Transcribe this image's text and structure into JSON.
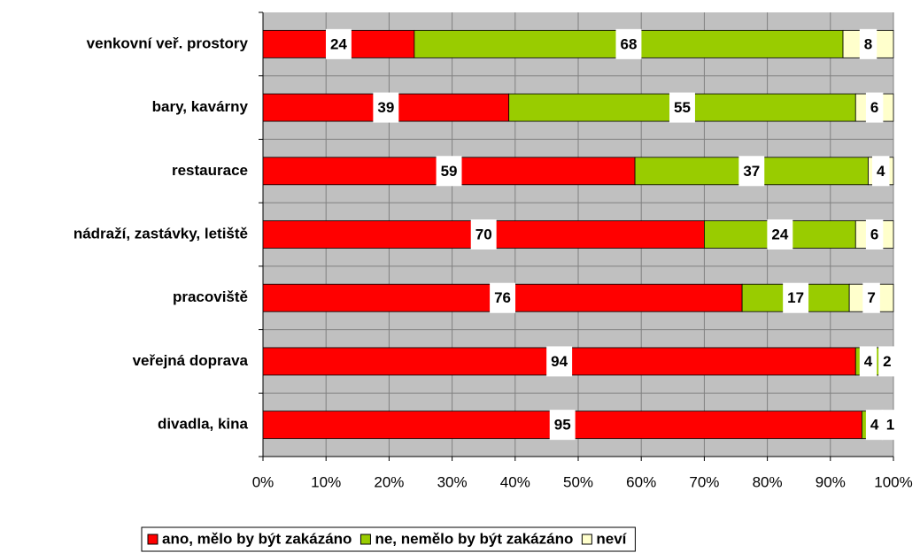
{
  "chart_data": {
    "type": "stacked-barh",
    "categories": [
      "venkovní veř. prostory",
      "bary, kavárny",
      "restaurace",
      "nádraží, zastávky, letiště",
      "pracoviště",
      "veřejná doprava",
      "divadla, kina"
    ],
    "series": [
      {
        "name": "ano, mělo by být zakázáno",
        "color": "#ff0000",
        "values": [
          24,
          39,
          59,
          70,
          76,
          94,
          95
        ]
      },
      {
        "name": "ne, nemělo by být zakázáno",
        "color": "#99cc00",
        "values": [
          68,
          55,
          37,
          24,
          17,
          4,
          4
        ]
      },
      {
        "name": "neví",
        "color": "#ffffcc",
        "values": [
          8,
          6,
          4,
          6,
          7,
          2,
          1
        ]
      }
    ],
    "xlim": [
      0,
      100
    ],
    "xticks": [
      {
        "value": 0,
        "label": "0%"
      },
      {
        "value": 10,
        "label": "10%"
      },
      {
        "value": 20,
        "label": "20%"
      },
      {
        "value": 30,
        "label": "30%"
      },
      {
        "value": 40,
        "label": "40%"
      },
      {
        "value": 50,
        "label": "50%"
      },
      {
        "value": 60,
        "label": "60%"
      },
      {
        "value": 70,
        "label": "70%"
      },
      {
        "value": 80,
        "label": "80%"
      },
      {
        "value": 90,
        "label": "90%"
      },
      {
        "value": 100,
        "label": "100%"
      }
    ],
    "grid": true,
    "legend": "bottom"
  }
}
